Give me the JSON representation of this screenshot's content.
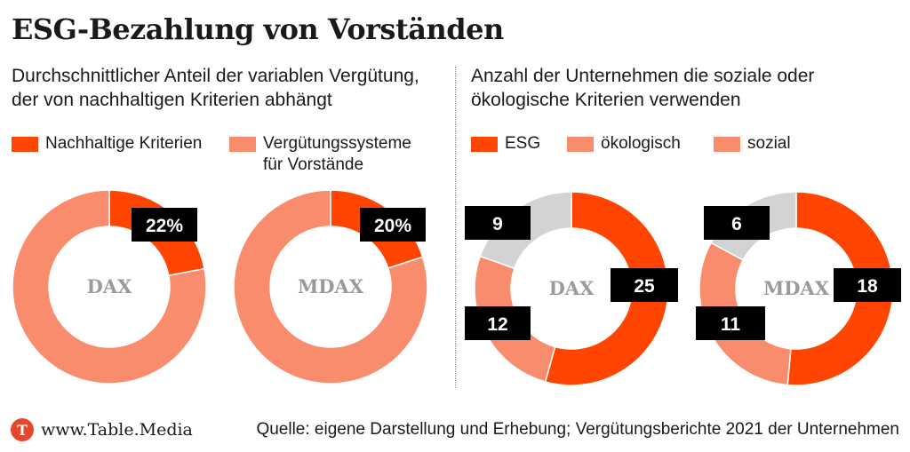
{
  "title": "ESG-Bezahlung von Vorständen",
  "left_panel": {
    "subtitle": "Durchschnittlicher Anteil der variablen Vergü­tung, der von nachhaltigen Kriterien abhängt",
    "legend": [
      {
        "label": "Nachhaltige Kriterien",
        "color": "#ff4500"
      },
      {
        "label": "Vergütungssysteme für Vorstände",
        "color": "#fa8c6e"
      }
    ]
  },
  "right_panel": {
    "subtitle": "Anzahl der Unternehmen die soziale oder ökologische Kriterien verwenden",
    "legend": [
      {
        "label": "ESG",
        "color": "#ff4500"
      },
      {
        "label": "ökologisch",
        "color": "#fa8c6e"
      },
      {
        "label": "sozial",
        "color": "#fa8c6e"
      }
    ]
  },
  "chart_data": [
    {
      "type": "pie",
      "center_label": "DAX",
      "slices": [
        {
          "label": "Nachhaltige Kriterien",
          "value": 22,
          "display": "22%",
          "color": "#ff4500"
        },
        {
          "label": "Vergütungssysteme für Vorstände",
          "value": 78,
          "display": "",
          "color": "#fa8c6e"
        }
      ]
    },
    {
      "type": "pie",
      "center_label": "MDAX",
      "slices": [
        {
          "label": "Nachhaltige Kriterien",
          "value": 20,
          "display": "20%",
          "color": "#ff4500"
        },
        {
          "label": "Vergütungssysteme für Vorstände",
          "value": 80,
          "display": "",
          "color": "#fa8c6e"
        }
      ]
    },
    {
      "type": "pie",
      "center_label": "DAX",
      "slices": [
        {
          "label": "ESG",
          "value": 25,
          "display": "25",
          "color": "#ff4500"
        },
        {
          "label": "ökologisch",
          "value": 12,
          "display": "12",
          "color": "#fa8c6e"
        },
        {
          "label": "sozial",
          "value": 9,
          "display": "9",
          "color": "#d3d3d3"
        }
      ]
    },
    {
      "type": "pie",
      "center_label": "MDAX",
      "slices": [
        {
          "label": "ESG",
          "value": 18,
          "display": "18",
          "color": "#ff4500"
        },
        {
          "label": "ökologisch",
          "value": 11,
          "display": "11",
          "color": "#fa8c6e"
        },
        {
          "label": "sozial",
          "value": 6,
          "display": "6",
          "color": "#d3d3d3"
        }
      ]
    }
  ],
  "footer": {
    "logo_letter": "T",
    "site": "www.Table.Media",
    "source": "Quelle: eigene Darstellung und Erhebung; Vergütungsberichte 2021 der Unternehmen"
  }
}
